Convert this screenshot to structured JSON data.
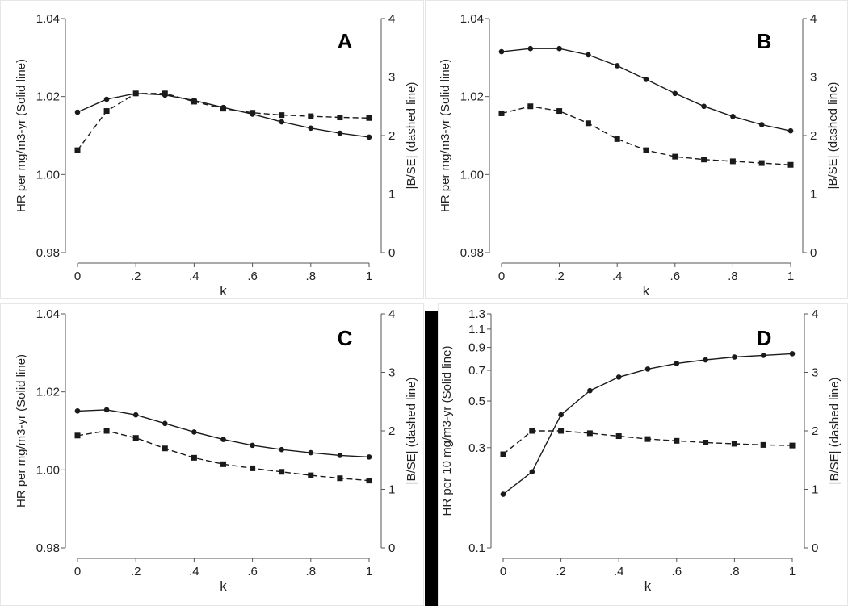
{
  "colors": {
    "line": "#1a1a1a",
    "axis": "#555555",
    "text": "#222222",
    "background": "#ffffff",
    "bar": "#000000"
  },
  "chart_data": [
    {
      "panel": "A",
      "type": "line",
      "xlabel": "k",
      "ylabel_left": "HR per mg/m3-yr (Solid line)",
      "ylabel_right": "|B/SE| (dashed line)",
      "x": [
        0,
        0.1,
        0.2,
        0.3,
        0.4,
        0.5,
        0.6,
        0.7,
        0.8,
        0.9,
        1
      ],
      "x_tick_labels": [
        "0",
        ".2",
        ".4",
        ".6",
        ".8",
        "1"
      ],
      "y_left": {
        "scale": "linear",
        "range": [
          0.98,
          1.04
        ],
        "ticks": [
          0.98,
          1.0,
          1.02,
          1.04
        ],
        "tick_labels": [
          "0.98",
          "1.00",
          "1.02",
          "1.04"
        ]
      },
      "y_right": {
        "range": [
          0,
          4
        ],
        "ticks": [
          0,
          1,
          2,
          3,
          4
        ],
        "tick_labels": [
          "0",
          "1",
          "2",
          "3",
          "4"
        ]
      },
      "series": [
        {
          "style": "solid",
          "marker": "circle",
          "axis": "left",
          "values": [
            1.016,
            1.0193,
            1.0208,
            1.0204,
            1.019,
            1.0172,
            1.0155,
            1.0135,
            1.0119,
            1.0106,
            1.0096
          ]
        },
        {
          "style": "dashed",
          "marker": "square",
          "axis": "right",
          "values": [
            1.75,
            2.42,
            2.72,
            2.72,
            2.58,
            2.46,
            2.39,
            2.35,
            2.33,
            2.31,
            2.3
          ]
        }
      ]
    },
    {
      "panel": "B",
      "type": "line",
      "xlabel": "k",
      "ylabel_left": "HR per mg/m3-yr (Solid line)",
      "ylabel_right": "|B/SE| (dashed line)",
      "x": [
        0,
        0.1,
        0.2,
        0.3,
        0.4,
        0.5,
        0.6,
        0.7,
        0.8,
        0.9,
        1
      ],
      "x_tick_labels": [
        "0",
        ".2",
        ".4",
        ".6",
        ".8",
        "1"
      ],
      "y_left": {
        "scale": "linear",
        "range": [
          0.98,
          1.04
        ],
        "ticks": [
          0.98,
          1.0,
          1.02,
          1.04
        ],
        "tick_labels": [
          "0.98",
          "1.00",
          "1.02",
          "1.04"
        ]
      },
      "y_right": {
        "range": [
          0,
          4
        ],
        "ticks": [
          0,
          1,
          2,
          3,
          4
        ],
        "tick_labels": [
          "0",
          "1",
          "2",
          "3",
          "4"
        ]
      },
      "series": [
        {
          "style": "solid",
          "marker": "circle",
          "axis": "left",
          "values": [
            1.0315,
            1.0323,
            1.0323,
            1.0307,
            1.0279,
            1.0244,
            1.0208,
            1.0175,
            1.0149,
            1.0128,
            1.0112
          ]
        },
        {
          "style": "dashed",
          "marker": "square",
          "axis": "right",
          "values": [
            2.38,
            2.5,
            2.42,
            2.21,
            1.94,
            1.75,
            1.64,
            1.59,
            1.56,
            1.53,
            1.5
          ]
        }
      ]
    },
    {
      "panel": "C",
      "type": "line",
      "xlabel": "k",
      "ylabel_left": "HR per mg/m3-yr (Solid line)",
      "ylabel_right": "|B/SE| (dashed line)",
      "x": [
        0,
        0.1,
        0.2,
        0.3,
        0.4,
        0.5,
        0.6,
        0.7,
        0.8,
        0.9,
        1
      ],
      "x_tick_labels": [
        "0",
        ".2",
        ".4",
        ".6",
        ".8",
        "1"
      ],
      "y_left": {
        "scale": "linear",
        "range": [
          0.98,
          1.04
        ],
        "ticks": [
          0.98,
          1.0,
          1.02,
          1.04
        ],
        "tick_labels": [
          "0.98",
          "1.00",
          "1.02",
          "1.04"
        ]
      },
      "y_right": {
        "range": [
          0,
          4
        ],
        "ticks": [
          0,
          1,
          2,
          3,
          4
        ],
        "tick_labels": [
          "0",
          "1",
          "2",
          "3",
          "4"
        ]
      },
      "series": [
        {
          "style": "solid",
          "marker": "circle",
          "axis": "left",
          "values": [
            1.0151,
            1.0154,
            1.0141,
            1.0119,
            1.0097,
            1.0078,
            1.0063,
            1.0052,
            1.0044,
            1.0037,
            1.0033
          ]
        },
        {
          "style": "dashed",
          "marker": "square",
          "axis": "right",
          "values": [
            1.92,
            2.0,
            1.88,
            1.7,
            1.54,
            1.43,
            1.36,
            1.3,
            1.24,
            1.19,
            1.15
          ]
        }
      ]
    },
    {
      "panel": "D",
      "type": "line",
      "xlabel": "k",
      "ylabel_left": "HR per 10 mg/m3-yr (Solid line)",
      "ylabel_right": "|B/SE| (dashed line)",
      "x": [
        0,
        0.1,
        0.2,
        0.3,
        0.4,
        0.5,
        0.6,
        0.7,
        0.8,
        0.9,
        1
      ],
      "x_tick_labels": [
        "0",
        ".2",
        ".4",
        ".6",
        ".8",
        "1"
      ],
      "y_left": {
        "scale": "log",
        "range": [
          0.1,
          1.3
        ],
        "ticks": [
          0.1,
          0.3,
          0.5,
          0.7,
          0.9,
          1.1,
          1.3
        ],
        "tick_labels": [
          "0.1",
          "0.3",
          "0.5",
          "0.7",
          "0.9",
          "1.1",
          "1.3"
        ]
      },
      "y_right": {
        "range": [
          0,
          4
        ],
        "ticks": [
          0,
          1,
          2,
          3,
          4
        ],
        "tick_labels": [
          "0",
          "1",
          "2",
          "3",
          "4"
        ]
      },
      "series": [
        {
          "style": "solid",
          "marker": "circle",
          "axis": "left",
          "values": [
            0.18,
            0.23,
            0.43,
            0.56,
            0.65,
            0.71,
            0.755,
            0.785,
            0.81,
            0.825,
            0.84
          ]
        },
        {
          "style": "dashed",
          "marker": "square",
          "axis": "right",
          "values": [
            1.6,
            2.0,
            2.0,
            1.96,
            1.91,
            1.86,
            1.83,
            1.8,
            1.78,
            1.76,
            1.75
          ]
        }
      ]
    }
  ]
}
